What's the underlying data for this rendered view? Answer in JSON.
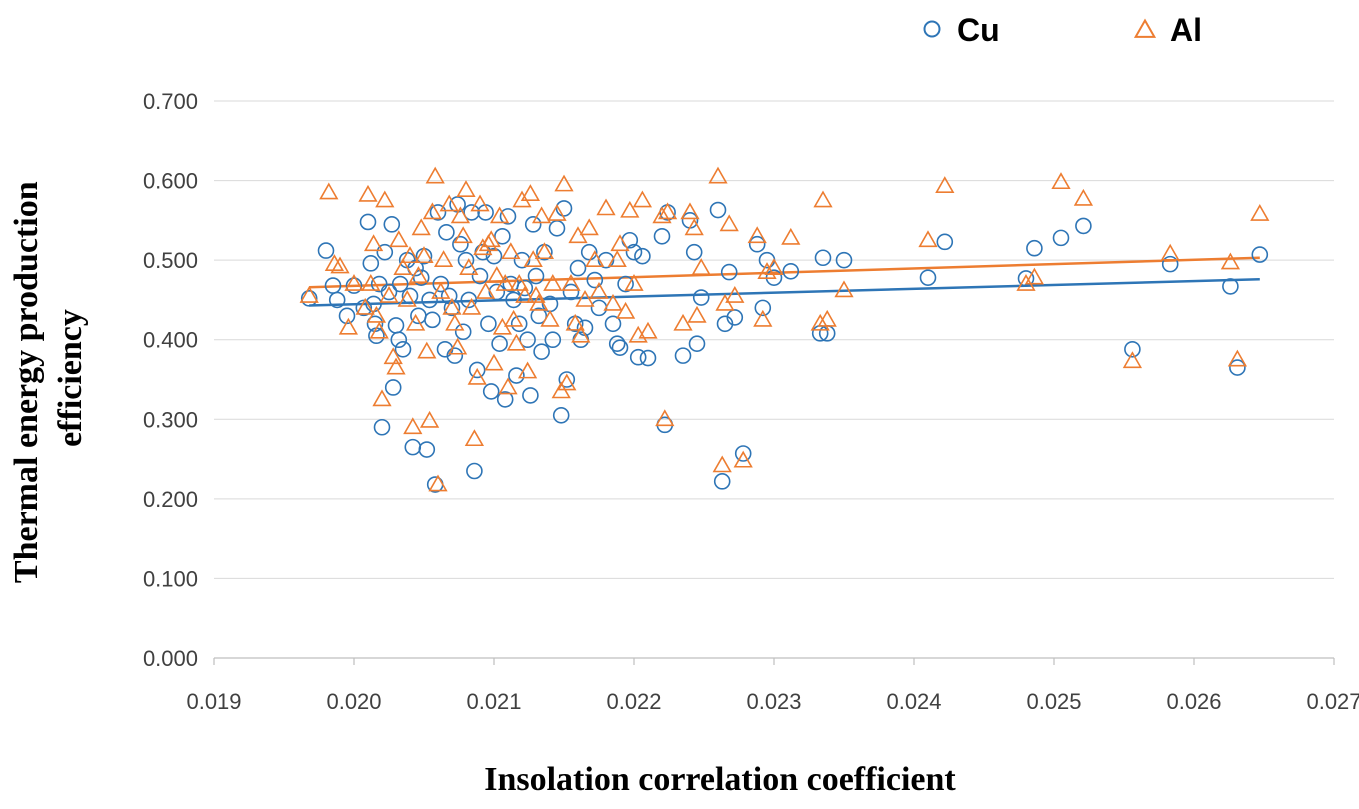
{
  "chart_data": {
    "type": "scatter",
    "xlabel": "Insolation correlation coefficient",
    "ylabel": "Thermal energy production efficiency",
    "xlim": [
      0.019,
      0.027
    ],
    "ylim": [
      0.0,
      0.7
    ],
    "x_ticks": [
      "0.019",
      "0.020",
      "0.021",
      "0.022",
      "0.023",
      "0.024",
      "0.025",
      "0.026",
      "0.027"
    ],
    "y_ticks": [
      "0.000",
      "0.100",
      "0.200",
      "0.300",
      "0.400",
      "0.500",
      "0.600",
      "0.700"
    ],
    "grid": true,
    "legend_position": "top-right",
    "series": [
      {
        "name": "Cu",
        "marker": "circle",
        "color": "#2E75B6",
        "trend": [
          [
            0.01968,
            0.443
          ],
          [
            0.02647,
            0.476
          ]
        ],
        "points": [
          [
            0.01968,
            0.452
          ],
          [
            0.0198,
            0.512
          ],
          [
            0.01985,
            0.468
          ],
          [
            0.01988,
            0.45
          ],
          [
            0.01995,
            0.43
          ],
          [
            0.02,
            0.468
          ],
          [
            0.02007,
            0.44
          ],
          [
            0.0201,
            0.548
          ],
          [
            0.02012,
            0.496
          ],
          [
            0.02014,
            0.445
          ],
          [
            0.02015,
            0.42
          ],
          [
            0.02016,
            0.405
          ],
          [
            0.02018,
            0.47
          ],
          [
            0.0202,
            0.29
          ],
          [
            0.02022,
            0.51
          ],
          [
            0.02025,
            0.46
          ],
          [
            0.02027,
            0.545
          ],
          [
            0.02028,
            0.34
          ],
          [
            0.0203,
            0.418
          ],
          [
            0.02032,
            0.4
          ],
          [
            0.02033,
            0.47
          ],
          [
            0.02035,
            0.388
          ],
          [
            0.02038,
            0.5
          ],
          [
            0.0204,
            0.455
          ],
          [
            0.02042,
            0.265
          ],
          [
            0.02044,
            0.49
          ],
          [
            0.02046,
            0.43
          ],
          [
            0.02048,
            0.478
          ],
          [
            0.0205,
            0.505
          ],
          [
            0.02052,
            0.262
          ],
          [
            0.02054,
            0.45
          ],
          [
            0.02056,
            0.425
          ],
          [
            0.02058,
            0.218
          ],
          [
            0.0206,
            0.56
          ],
          [
            0.02062,
            0.47
          ],
          [
            0.02065,
            0.388
          ],
          [
            0.02066,
            0.535
          ],
          [
            0.02068,
            0.455
          ],
          [
            0.0207,
            0.44
          ],
          [
            0.02072,
            0.38
          ],
          [
            0.02074,
            0.57
          ],
          [
            0.02076,
            0.52
          ],
          [
            0.02078,
            0.41
          ],
          [
            0.0208,
            0.5
          ],
          [
            0.02082,
            0.45
          ],
          [
            0.02084,
            0.56
          ],
          [
            0.02086,
            0.235
          ],
          [
            0.02088,
            0.362
          ],
          [
            0.0209,
            0.48
          ],
          [
            0.02092,
            0.51
          ],
          [
            0.02094,
            0.56
          ],
          [
            0.02096,
            0.42
          ],
          [
            0.02098,
            0.335
          ],
          [
            0.021,
            0.505
          ],
          [
            0.02102,
            0.46
          ],
          [
            0.02104,
            0.395
          ],
          [
            0.02106,
            0.53
          ],
          [
            0.02108,
            0.325
          ],
          [
            0.0211,
            0.555
          ],
          [
            0.02112,
            0.47
          ],
          [
            0.02114,
            0.45
          ],
          [
            0.02116,
            0.355
          ],
          [
            0.02118,
            0.42
          ],
          [
            0.0212,
            0.5
          ],
          [
            0.02122,
            0.465
          ],
          [
            0.02124,
            0.4
          ],
          [
            0.02126,
            0.33
          ],
          [
            0.02128,
            0.545
          ],
          [
            0.0213,
            0.48
          ],
          [
            0.02132,
            0.43
          ],
          [
            0.02134,
            0.385
          ],
          [
            0.02136,
            0.51
          ],
          [
            0.0214,
            0.445
          ],
          [
            0.02142,
            0.4
          ],
          [
            0.02145,
            0.54
          ],
          [
            0.02148,
            0.305
          ],
          [
            0.0215,
            0.565
          ],
          [
            0.02152,
            0.35
          ],
          [
            0.02155,
            0.46
          ],
          [
            0.02158,
            0.42
          ],
          [
            0.0216,
            0.49
          ],
          [
            0.02162,
            0.4
          ],
          [
            0.02165,
            0.415
          ],
          [
            0.02168,
            0.51
          ],
          [
            0.02172,
            0.475
          ],
          [
            0.02175,
            0.44
          ],
          [
            0.0218,
            0.5
          ],
          [
            0.02185,
            0.42
          ],
          [
            0.02188,
            0.395
          ],
          [
            0.0219,
            0.39
          ],
          [
            0.02194,
            0.47
          ],
          [
            0.02197,
            0.525
          ],
          [
            0.022,
            0.51
          ],
          [
            0.02203,
            0.378
          ],
          [
            0.02206,
            0.505
          ],
          [
            0.0221,
            0.377
          ],
          [
            0.0222,
            0.53
          ],
          [
            0.02222,
            0.293
          ],
          [
            0.02224,
            0.56
          ],
          [
            0.02235,
            0.38
          ],
          [
            0.0224,
            0.55
          ],
          [
            0.02243,
            0.51
          ],
          [
            0.02245,
            0.395
          ],
          [
            0.02248,
            0.453
          ],
          [
            0.0226,
            0.563
          ],
          [
            0.02263,
            0.222
          ],
          [
            0.02265,
            0.42
          ],
          [
            0.02268,
            0.485
          ],
          [
            0.02272,
            0.428
          ],
          [
            0.02278,
            0.257
          ],
          [
            0.02288,
            0.52
          ],
          [
            0.02292,
            0.44
          ],
          [
            0.02295,
            0.5
          ],
          [
            0.023,
            0.478
          ],
          [
            0.02312,
            0.486
          ],
          [
            0.02333,
            0.408
          ],
          [
            0.02335,
            0.503
          ],
          [
            0.02338,
            0.408
          ],
          [
            0.0235,
            0.5
          ],
          [
            0.0241,
            0.478
          ],
          [
            0.02422,
            0.523
          ],
          [
            0.0248,
            0.477
          ],
          [
            0.02486,
            0.515
          ],
          [
            0.02505,
            0.528
          ],
          [
            0.02521,
            0.543
          ],
          [
            0.02556,
            0.388
          ],
          [
            0.02583,
            0.495
          ],
          [
            0.02626,
            0.467
          ],
          [
            0.02631,
            0.365
          ],
          [
            0.02647,
            0.507
          ]
        ]
      },
      {
        "name": "Al",
        "marker": "triangle",
        "color": "#ED7D31",
        "trend": [
          [
            0.01968,
            0.466
          ],
          [
            0.02647,
            0.503
          ]
        ],
        "points": [
          [
            0.01968,
            0.455
          ],
          [
            0.01982,
            0.585
          ],
          [
            0.01986,
            0.495
          ],
          [
            0.0199,
            0.492
          ],
          [
            0.01996,
            0.415
          ],
          [
            0.02,
            0.47
          ],
          [
            0.02008,
            0.44
          ],
          [
            0.0201,
            0.582
          ],
          [
            0.02012,
            0.47
          ],
          [
            0.02014,
            0.52
          ],
          [
            0.02016,
            0.43
          ],
          [
            0.02018,
            0.41
          ],
          [
            0.0202,
            0.325
          ],
          [
            0.02022,
            0.575
          ],
          [
            0.02025,
            0.455
          ],
          [
            0.02028,
            0.378
          ],
          [
            0.0203,
            0.365
          ],
          [
            0.02032,
            0.525
          ],
          [
            0.02035,
            0.49
          ],
          [
            0.02038,
            0.45
          ],
          [
            0.0204,
            0.505
          ],
          [
            0.02042,
            0.29
          ],
          [
            0.02044,
            0.42
          ],
          [
            0.02046,
            0.48
          ],
          [
            0.02048,
            0.54
          ],
          [
            0.0205,
            0.505
          ],
          [
            0.02052,
            0.385
          ],
          [
            0.02054,
            0.298
          ],
          [
            0.02056,
            0.56
          ],
          [
            0.02058,
            0.605
          ],
          [
            0.0206,
            0.218
          ],
          [
            0.02062,
            0.46
          ],
          [
            0.02064,
            0.5
          ],
          [
            0.02068,
            0.57
          ],
          [
            0.0207,
            0.44
          ],
          [
            0.02072,
            0.42
          ],
          [
            0.02074,
            0.39
          ],
          [
            0.02076,
            0.555
          ],
          [
            0.02078,
            0.53
          ],
          [
            0.0208,
            0.588
          ],
          [
            0.02082,
            0.49
          ],
          [
            0.02084,
            0.44
          ],
          [
            0.02086,
            0.275
          ],
          [
            0.02088,
            0.352
          ],
          [
            0.0209,
            0.57
          ],
          [
            0.02092,
            0.515
          ],
          [
            0.02094,
            0.46
          ],
          [
            0.02096,
            0.52
          ],
          [
            0.02098,
            0.525
          ],
          [
            0.021,
            0.37
          ],
          [
            0.02102,
            0.48
          ],
          [
            0.02104,
            0.555
          ],
          [
            0.02106,
            0.415
          ],
          [
            0.02108,
            0.47
          ],
          [
            0.0211,
            0.34
          ],
          [
            0.02112,
            0.51
          ],
          [
            0.02114,
            0.425
          ],
          [
            0.02116,
            0.395
          ],
          [
            0.02118,
            0.47
          ],
          [
            0.0212,
            0.575
          ],
          [
            0.02122,
            0.455
          ],
          [
            0.02124,
            0.36
          ],
          [
            0.02126,
            0.583
          ],
          [
            0.02128,
            0.5
          ],
          [
            0.0213,
            0.455
          ],
          [
            0.02132,
            0.445
          ],
          [
            0.02134,
            0.555
          ],
          [
            0.02136,
            0.51
          ],
          [
            0.0214,
            0.425
          ],
          [
            0.02142,
            0.47
          ],
          [
            0.02145,
            0.558
          ],
          [
            0.02148,
            0.335
          ],
          [
            0.0215,
            0.595
          ],
          [
            0.02152,
            0.345
          ],
          [
            0.02155,
            0.47
          ],
          [
            0.02158,
            0.42
          ],
          [
            0.0216,
            0.53
          ],
          [
            0.02162,
            0.405
          ],
          [
            0.02165,
            0.45
          ],
          [
            0.02168,
            0.54
          ],
          [
            0.02172,
            0.5
          ],
          [
            0.02175,
            0.46
          ],
          [
            0.0218,
            0.565
          ],
          [
            0.02185,
            0.445
          ],
          [
            0.02188,
            0.5
          ],
          [
            0.0219,
            0.52
          ],
          [
            0.02194,
            0.435
          ],
          [
            0.02197,
            0.562
          ],
          [
            0.022,
            0.47
          ],
          [
            0.02203,
            0.405
          ],
          [
            0.02206,
            0.575
          ],
          [
            0.0221,
            0.41
          ],
          [
            0.0222,
            0.555
          ],
          [
            0.02222,
            0.3
          ],
          [
            0.02224,
            0.56
          ],
          [
            0.02235,
            0.42
          ],
          [
            0.0224,
            0.56
          ],
          [
            0.02243,
            0.54
          ],
          [
            0.02245,
            0.43
          ],
          [
            0.02248,
            0.49
          ],
          [
            0.0226,
            0.605
          ],
          [
            0.02263,
            0.242
          ],
          [
            0.02265,
            0.445
          ],
          [
            0.02268,
            0.545
          ],
          [
            0.02272,
            0.455
          ],
          [
            0.02278,
            0.248
          ],
          [
            0.02288,
            0.53
          ],
          [
            0.02292,
            0.425
          ],
          [
            0.02295,
            0.485
          ],
          [
            0.023,
            0.49
          ],
          [
            0.02312,
            0.528
          ],
          [
            0.02333,
            0.42
          ],
          [
            0.02335,
            0.575
          ],
          [
            0.02338,
            0.425
          ],
          [
            0.0235,
            0.462
          ],
          [
            0.0241,
            0.525
          ],
          [
            0.02422,
            0.593
          ],
          [
            0.0248,
            0.47
          ],
          [
            0.02486,
            0.478
          ],
          [
            0.02505,
            0.598
          ],
          [
            0.02521,
            0.577
          ],
          [
            0.02556,
            0.373
          ],
          [
            0.02583,
            0.508
          ],
          [
            0.02626,
            0.497
          ],
          [
            0.02631,
            0.375
          ],
          [
            0.02647,
            0.558
          ]
        ]
      }
    ]
  }
}
